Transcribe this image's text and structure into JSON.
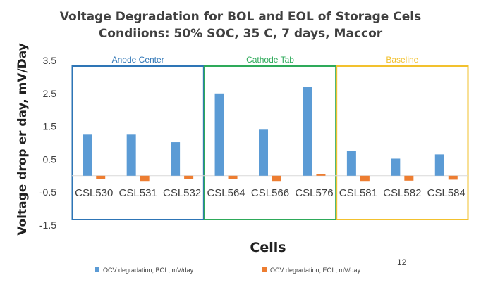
{
  "chart_data": {
    "type": "bar",
    "title": "Voltage Degradation for BOL and EOL of Storage Cels",
    "subtitle": "Condiions: 50% SOC, 35 C, 7 days, Maccor",
    "xlabel": "Cells",
    "ylabel": "Voltage drop er day, mV/Day",
    "ylim": [
      -1.5,
      3.5
    ],
    "yticks": [
      "3.5",
      "2.5",
      "1.5",
      "0.5",
      "-0.5",
      "-1.5"
    ],
    "ytick_values": [
      3.5,
      2.5,
      1.5,
      0.5,
      -0.5,
      -1.5
    ],
    "grid": false,
    "legend_position": "bottom",
    "categories": [
      "CSL530",
      "CSL531",
      "CSL532",
      "CSL564",
      "CSL566",
      "CSL576",
      "CSL581",
      "CSL582",
      "CSL584"
    ],
    "series": [
      {
        "name": "OCV degradation, BOL, mV/day",
        "color": "#5b9bd5",
        "values": [
          1.25,
          1.25,
          1.02,
          2.5,
          1.4,
          2.7,
          0.75,
          0.52,
          0.65
        ]
      },
      {
        "name": "OCV degradation, EOL, mV/day",
        "color": "#ed7d31",
        "values": [
          -0.1,
          -0.18,
          -0.1,
          -0.1,
          -0.18,
          0.05,
          -0.18,
          -0.15,
          -0.12
        ]
      }
    ],
    "groups": [
      {
        "label": "Anode Center",
        "color": "#2e75b6",
        "first": 0,
        "last": 2
      },
      {
        "label": "Cathode Tab",
        "color": "#2eaa5a",
        "first": 3,
        "last": 5
      },
      {
        "label": "Baseline",
        "color": "#f2c12e",
        "first": 6,
        "last": 8
      }
    ]
  },
  "page_number": "12"
}
